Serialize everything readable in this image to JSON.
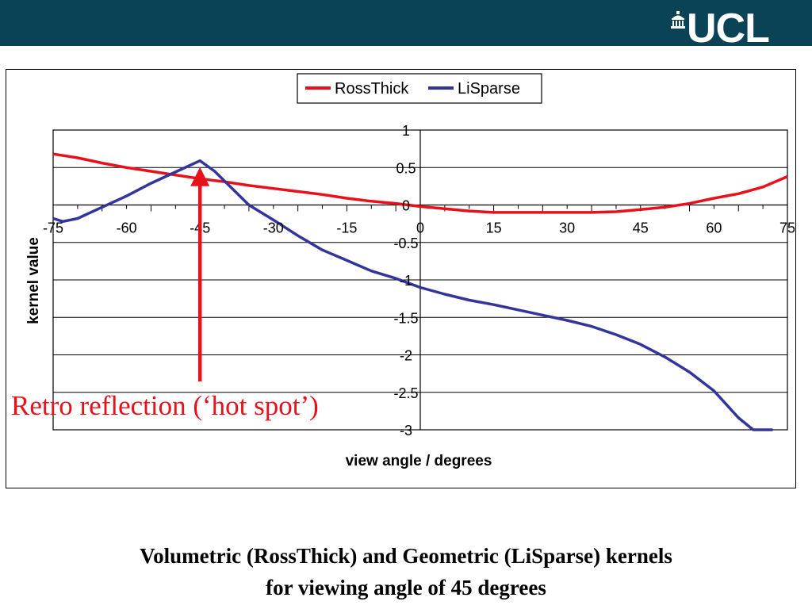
{
  "header": {
    "logo_text": "UCL",
    "logo_icon": "portico-icon",
    "bar_color": "#0b4356"
  },
  "annotation": {
    "text": "Retro reflection (‘hot spot’)",
    "color": "#e8101a"
  },
  "caption": {
    "line1": "Volumetric (RossThick) and Geometric (LiSparse) kernels",
    "line2": "for viewing angle of 45 degrees"
  },
  "chart_data": {
    "type": "line",
    "xlabel": "view angle / degrees",
    "ylabel": "kernel value",
    "xlim": [
      -75,
      75
    ],
    "ylim": [
      -3,
      1
    ],
    "x_ticks": [
      -75,
      -60,
      -45,
      -30,
      -15,
      0,
      15,
      30,
      45,
      60,
      75
    ],
    "y_ticks": [
      1,
      0.5,
      0,
      -0.5,
      -1,
      -1.5,
      -2,
      -2.5,
      -3
    ],
    "grid": "horizontal",
    "legend": "top-center",
    "series": [
      {
        "name": "RossThick",
        "color": "#e8101a",
        "x": [
          -75,
          -70,
          -65,
          -60,
          -55,
          -50,
          -45,
          -40,
          -35,
          -30,
          -25,
          -20,
          -15,
          -10,
          -5,
          0,
          5,
          10,
          15,
          20,
          25,
          30,
          35,
          40,
          45,
          50,
          55,
          60,
          65,
          70,
          75
        ],
        "y": [
          0.68,
          0.63,
          0.56,
          0.5,
          0.45,
          0.4,
          0.35,
          0.31,
          0.26,
          0.22,
          0.18,
          0.14,
          0.09,
          0.05,
          0.02,
          -0.02,
          -0.05,
          -0.08,
          -0.1,
          -0.1,
          -0.1,
          -0.1,
          -0.1,
          -0.09,
          -0.06,
          -0.03,
          0.02,
          0.09,
          0.15,
          0.24,
          0.38
        ]
      },
      {
        "name": "LiSparse",
        "color": "#33359a",
        "x": [
          -75,
          -73,
          -70,
          -65,
          -60,
          -55,
          -50,
          -45,
          -42,
          -40,
          -35,
          -30,
          -25,
          -20,
          -15,
          -10,
          -5,
          0,
          5,
          10,
          15,
          20,
          25,
          30,
          35,
          40,
          45,
          50,
          55,
          60,
          65,
          68,
          70,
          72
        ],
        "y": [
          -0.18,
          -0.22,
          -0.18,
          -0.03,
          0.12,
          0.29,
          0.44,
          0.59,
          0.45,
          0.32,
          0.0,
          -0.2,
          -0.41,
          -0.6,
          -0.74,
          -0.88,
          -0.98,
          -1.1,
          -1.19,
          -1.27,
          -1.33,
          -1.4,
          -1.47,
          -1.54,
          -1.62,
          -1.73,
          -1.86,
          -2.03,
          -2.23,
          -2.48,
          -2.84,
          -3.0,
          -3.0,
          -3.0
        ]
      }
    ]
  }
}
